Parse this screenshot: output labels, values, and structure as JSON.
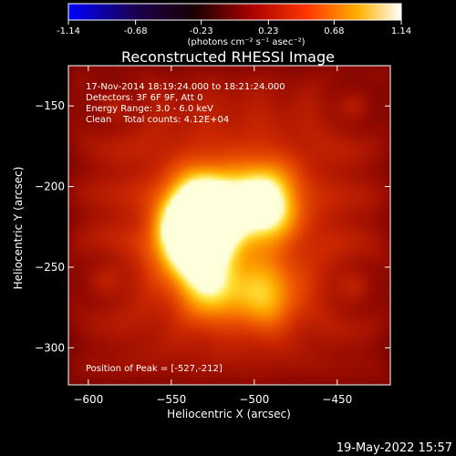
{
  "colorbar": {
    "ticks": [
      "-1.14",
      "-0.68",
      "-0.23",
      "0.23",
      "0.68",
      "1.14"
    ],
    "tick_values": [
      -1.14,
      -0.68,
      -0.23,
      0.23,
      0.68,
      1.14
    ],
    "range": [
      -1.14,
      1.14
    ],
    "unit_label": "(photons cm⁻² s⁻¹ asec⁻²)"
  },
  "chart_data": {
    "type": "heatmap",
    "title": "Reconstructed RHESSI Image",
    "xlabel": "Heliocentric X (arcsec)",
    "ylabel": "Heliocentric Y (arcsec)",
    "xlim": [
      -612,
      -418
    ],
    "ylim": [
      -323,
      -125
    ],
    "x_ticks": [
      -600,
      -550,
      -500,
      -450
    ],
    "y_ticks": [
      -150,
      -200,
      -250,
      -300
    ],
    "colormap": "hot",
    "annotations": {
      "time_range": "17-Nov-2014 18:19:24.000 to 18:21:24.000",
      "detectors": "Detectors: 3F 6F 9F, Att 0",
      "energy": "Energy Range: 3.0 - 6.0 keV",
      "clean": "Clean    Total counts: 4.12E+04",
      "peak": "Position of Peak = [-527,-212]"
    },
    "peak": [
      -527,
      -212
    ],
    "sources": [
      {
        "x": -530,
        "y": -215,
        "intensity": 1.0
      },
      {
        "x": -538,
        "y": -232,
        "intensity": 0.9
      },
      {
        "x": -495,
        "y": -210,
        "intensity": 0.75
      },
      {
        "x": -527,
        "y": -262,
        "intensity": 0.45
      },
      {
        "x": -493,
        "y": -268,
        "intensity": 0.4
      }
    ]
  },
  "footer": {
    "timestamp": "19-May-2022 15:57"
  }
}
